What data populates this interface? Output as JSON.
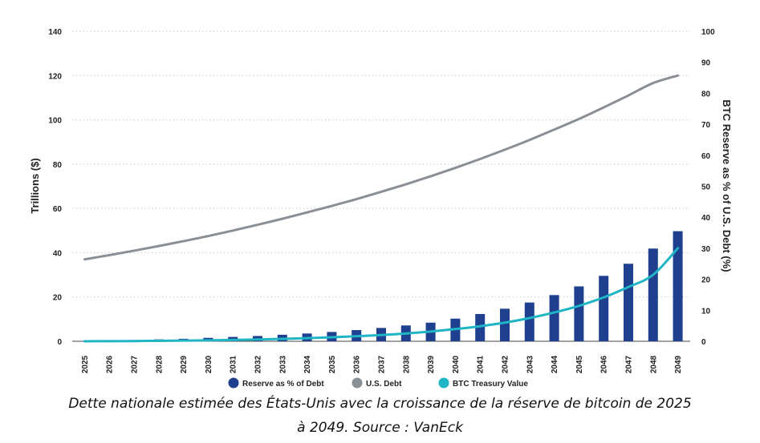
{
  "chart_data": {
    "type": "bar",
    "categories": [
      "2025",
      "2026",
      "2027",
      "2028",
      "2029",
      "2030",
      "2031",
      "2032",
      "2033",
      "2034",
      "2035",
      "2036",
      "2037",
      "2038",
      "2039",
      "2040",
      "2041",
      "2042",
      "2043",
      "2044",
      "2045",
      "2046",
      "2047",
      "2048",
      "2049"
    ],
    "ylabel_left": "Trillions ($)",
    "ylabel_right": "BTC Reserve as % of U.S. Debt (%)",
    "ylim_left": [
      0,
      140
    ],
    "ylim_right": [
      0,
      100
    ],
    "yticks_left": [
      0,
      20,
      40,
      60,
      80,
      100,
      120,
      140
    ],
    "yticks_right": [
      0,
      10,
      20,
      30,
      40,
      50,
      60,
      70,
      80,
      90,
      100
    ],
    "grid": "horizontal dotted",
    "series": [
      {
        "name": "Reserve as % of Debt",
        "type": "bar",
        "axis": "right",
        "color": "#1f3f8f",
        "values": [
          0.1,
          0.2,
          0.4,
          0.6,
          0.8,
          1.1,
          1.4,
          1.7,
          2.1,
          2.5,
          3.0,
          3.6,
          4.3,
          5.1,
          6.0,
          7.3,
          8.8,
          10.5,
          12.5,
          14.9,
          17.7,
          21.1,
          25.0,
          29.9,
          35.5
        ]
      },
      {
        "name": "U.S. Debt",
        "type": "line",
        "axis": "left",
        "color": "#8a8f96",
        "values": [
          37,
          38.9,
          40.9,
          43.0,
          45.2,
          47.5,
          50.0,
          52.6,
          55.3,
          58.2,
          61.1,
          64.2,
          67.5,
          70.9,
          74.5,
          78.3,
          82.3,
          86.5,
          90.9,
          95.6,
          100.4,
          105.6,
          111.0,
          116.6,
          120
        ]
      },
      {
        "name": "BTC Treasury Value",
        "type": "line",
        "axis": "left",
        "color": "#1fb5c4",
        "values": [
          0,
          0.05,
          0.1,
          0.2,
          0.3,
          0.4,
          0.6,
          0.8,
          1.1,
          1.4,
          1.8,
          2.3,
          2.8,
          3.5,
          4.4,
          5.5,
          6.8,
          8.4,
          10.5,
          13.0,
          16.0,
          19.8,
          24.5,
          30.0,
          42.0
        ]
      }
    ]
  },
  "caption_line1": "Dette nationale estimée des États-Unis avec la croissance de la réserve de bitcoin de 2025",
  "caption_line2": "à 2049. Source : VanEck"
}
